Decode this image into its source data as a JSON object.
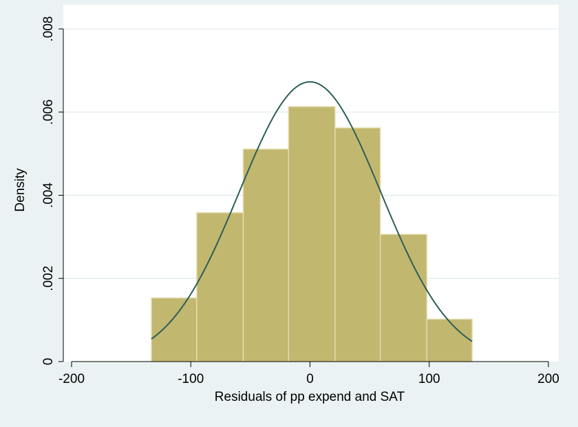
{
  "chart_data": {
    "type": "bar",
    "title": "",
    "xlabel": "Residuals of pp expend and SAT",
    "ylabel": "Density",
    "xlim": [
      -200,
      200
    ],
    "ylim": [
      0,
      0.008
    ],
    "x_ticks": [
      "-200",
      "-100",
      "0",
      "100",
      "200"
    ],
    "x_tick_values": [
      -200,
      -100,
      0,
      100,
      200
    ],
    "y_ticks": [
      "0",
      ".002",
      ".004",
      ".006",
      ".008"
    ],
    "y_tick_values": [
      0,
      0.002,
      0.004,
      0.006,
      0.008
    ],
    "grid": true,
    "bins": [
      {
        "x0": -133,
        "x1": -95,
        "density": 0.00153
      },
      {
        "x0": -95,
        "x1": -56,
        "density": 0.00358
      },
      {
        "x0": -56,
        "x1": -18,
        "density": 0.00511
      },
      {
        "x0": -18,
        "x1": 21,
        "density": 0.00613
      },
      {
        "x0": 21,
        "x1": 59,
        "density": 0.00562
      },
      {
        "x0": 59,
        "x1": 98,
        "density": 0.00306
      },
      {
        "x0": 98,
        "x1": 136,
        "density": 0.00102
      }
    ],
    "normal_curve": {
      "mean": 0,
      "sd": 59.3,
      "x_range": [
        -133,
        136
      ]
    },
    "colors": {
      "bar_fill": "#c2b76f",
      "bar_stroke": "#e3dcae",
      "curve": "#2b5e58",
      "grid": "#d8e6e8",
      "plot_bg": "#ffffff",
      "page_bg": "#eaf2f3"
    }
  }
}
